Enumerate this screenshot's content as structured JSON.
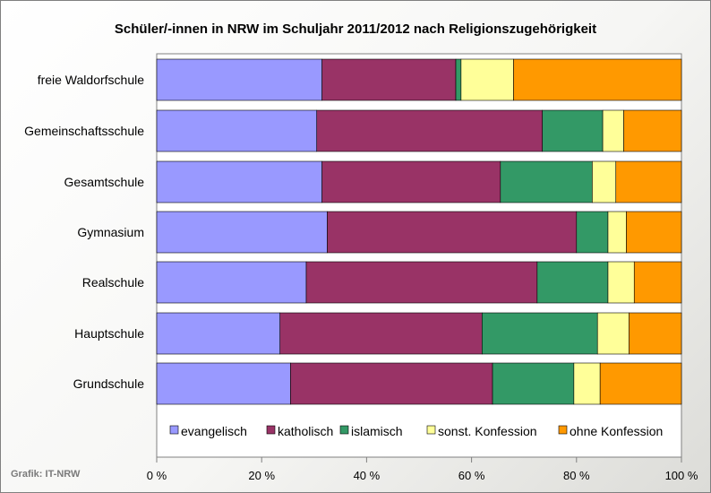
{
  "chart_data": {
    "type": "bar",
    "orientation": "horizontal",
    "stacked": true,
    "percent": true,
    "title": "Schüler/-innen in NRW im Schuljahr 2011/2012 nach Religionszugehörigkeit",
    "categories": [
      "freie Waldorfschule",
      "Gemeinschaftsschule",
      "Gesamtschule",
      "Gymnasium",
      "Realschule",
      "Hauptschule",
      "Grundschule"
    ],
    "series": [
      {
        "name": "evangelisch",
        "color": "#9999ff",
        "values": [
          31.5,
          30.5,
          31.5,
          32.5,
          28.5,
          23.5,
          25.5
        ]
      },
      {
        "name": "katholisch",
        "color": "#993366",
        "values": [
          25.5,
          43,
          34,
          47.5,
          44,
          38.5,
          38.5
        ]
      },
      {
        "name": "islamisch",
        "color": "#339966",
        "values": [
          1,
          11.5,
          17.5,
          6,
          13.5,
          22,
          15.5
        ]
      },
      {
        "name": "sonst. Konfession",
        "color": "#ffff99",
        "values": [
          10,
          4,
          4.5,
          3.5,
          5,
          6,
          5
        ]
      },
      {
        "name": "ohne Konfession",
        "color": "#ff9900",
        "values": [
          32,
          11,
          12.5,
          10.5,
          9,
          10,
          15.5
        ]
      }
    ],
    "xlim": [
      0,
      100
    ],
    "xticks": [
      "0 %",
      "20 %",
      "40 %",
      "60 %",
      "80 %",
      "100 %"
    ],
    "xlabel": "",
    "ylabel": "",
    "legend": "bottom-inside",
    "grid": false
  },
  "credit": "Grafik: IT-NRW"
}
